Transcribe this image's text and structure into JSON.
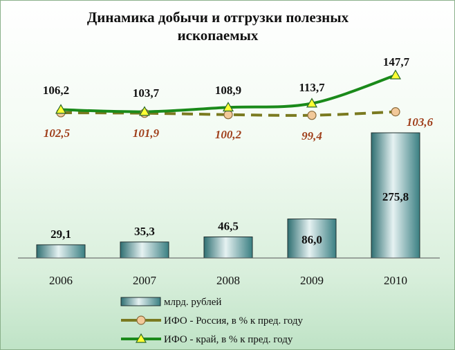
{
  "chart_data": {
    "type": "bar",
    "title_lines": [
      "Динамика добычи и отгрузки полезных",
      "ископаемых"
    ],
    "categories": [
      "2006",
      "2007",
      "2008",
      "2009",
      "2010"
    ],
    "series": [
      {
        "name": "млрд. рублей",
        "kind": "bar",
        "values": [
          29.1,
          35.3,
          46.5,
          86.0,
          275.8
        ],
        "labels": [
          "29,1",
          "35,3",
          "46,5",
          "86,0",
          "275,8"
        ],
        "color": "#3f8f8f"
      },
      {
        "name": "ИФО - Россия, в % к пред. году",
        "kind": "line",
        "style": "dashed",
        "marker": "circle",
        "values": [
          102.5,
          101.9,
          100.2,
          99.4,
          103.6
        ],
        "labels": [
          "102,5",
          "101,9",
          "100,2",
          "99,4",
          "103,6"
        ],
        "color": "#7a7a20",
        "label_color": "#a0401c"
      },
      {
        "name": "ИФО - край, в % к пред. году",
        "kind": "line",
        "style": "solid",
        "marker": "triangle",
        "values": [
          106.2,
          103.7,
          108.9,
          113.7,
          147.7
        ],
        "labels": [
          "106,2",
          "103,7",
          "108,9",
          "113,7",
          "147,7"
        ],
        "color": "#1a8a1a",
        "label_color": "#111111"
      }
    ],
    "bar_axis": {
      "ylim": [
        0,
        300
      ]
    },
    "legend_position": "bottom",
    "grid": false
  }
}
